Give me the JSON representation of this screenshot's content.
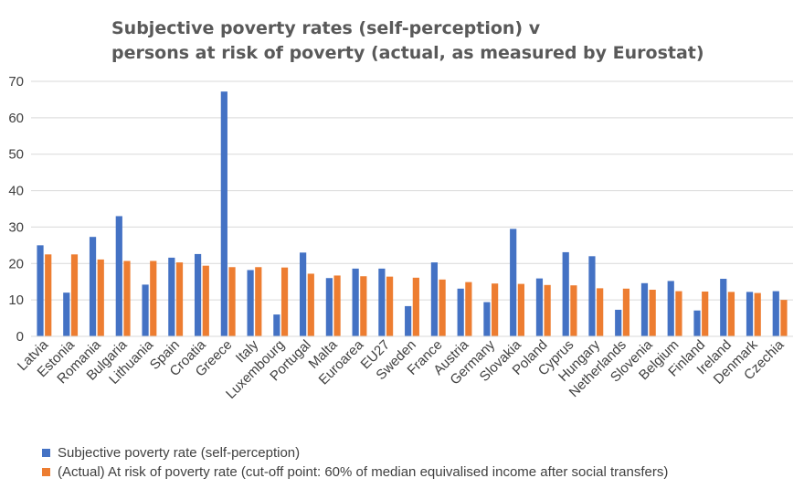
{
  "chart_data": {
    "type": "bar",
    "title_line1": "Subjective poverty rates (self-perception) v",
    "title_line2": "persons at risk of poverty (actual, as measured by Eurostat)",
    "categories": [
      "Latvia",
      "Estonia",
      "Romania",
      "Bulgaria",
      "Lithuania",
      "Spain",
      "Croatia",
      "Greece",
      "Italy",
      "Luxembourg",
      "Portugal",
      "Malta",
      "Euroarea",
      "EU27",
      "Sweden",
      "France",
      "Austria",
      "Germany",
      "Slovakia",
      "Poland",
      "Cyprus",
      "Hungary",
      "Netherlands",
      "Slovenia",
      "Belgium",
      "Finland",
      "Ireland",
      "Denmark",
      "Czechia"
    ],
    "series": [
      {
        "name": "Subjective poverty rate (self-perception)",
        "color": "#4472C4",
        "values": [
          25,
          12,
          27.3,
          33,
          14.2,
          21.6,
          22.6,
          67.2,
          18.2,
          6,
          23,
          16,
          18.6,
          18.6,
          8.3,
          20.3,
          13.1,
          9.4,
          29.5,
          15.9,
          23.1,
          22,
          7.3,
          14.6,
          15.2,
          7.1,
          15.8,
          12.2,
          12.4
        ]
      },
      {
        "name": "(Actual) At risk of poverty rate (cut-off point: 60% of median equivalised income after social transfers)",
        "color": "#ED7D31",
        "values": [
          22.5,
          22.5,
          21.1,
          20.7,
          20.7,
          20.3,
          19.4,
          19,
          19,
          18.9,
          17.2,
          16.7,
          16.5,
          16.4,
          16.1,
          15.6,
          14.9,
          14.5,
          14.4,
          14.1,
          14,
          13.2,
          13.1,
          12.8,
          12.4,
          12.3,
          12.2,
          11.9,
          10
        ]
      }
    ],
    "ylim": [
      0,
      70
    ],
    "yticks": [
      0,
      10,
      20,
      30,
      40,
      50,
      60,
      70
    ],
    "grid": true,
    "legend_position": "bottom-left"
  }
}
